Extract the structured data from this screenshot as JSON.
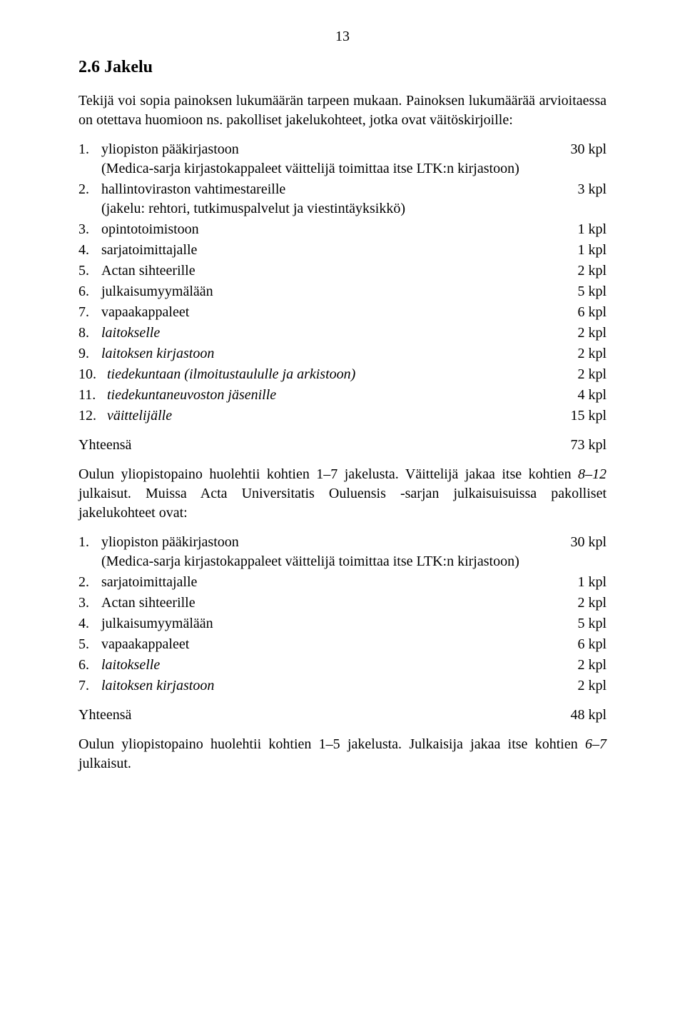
{
  "page_number": "13",
  "section_heading": "2.6 Jakelu",
  "intro_para": "Tekijä voi sopia painoksen lukumäärän tarpeen mukaan. Painoksen lukumäärää arvioitaessa on otettava huomioon ns. pakolliset jakelukohteet, jotka ovat väitöskirjoille:",
  "list1": [
    {
      "num": "1.",
      "label": "yliopiston pääkirjastoon",
      "sub": "(Medica-sarja kirjastokappaleet väittelijä toimittaa itse LTK:n kirjastoon)",
      "val": "30 kpl",
      "italic": false
    },
    {
      "num": "2.",
      "label": "hallintoviraston vahtimestareille",
      "sub": "(jakelu: rehtori, tutkimuspalvelut ja viestintäyksikkö)",
      "val": "3 kpl",
      "italic": false
    },
    {
      "num": "3.",
      "label": " opintotoimistoon",
      "val": "1 kpl",
      "italic": false
    },
    {
      "num": "4.",
      "label": "sarjatoimittajalle",
      "val": "1 kpl",
      "italic": false
    },
    {
      "num": "5.",
      "label": "Actan sihteerille",
      "val": "2 kpl",
      "italic": false
    },
    {
      "num": "6.",
      "label": "julkaisumyymälään",
      "val": "5 kpl",
      "italic": false
    },
    {
      "num": "7.",
      "label": "vapaakappaleet",
      "val": "6 kpl",
      "italic": false
    },
    {
      "num": "8.",
      "label": "laitokselle",
      "val": "2 kpl",
      "italic": true
    },
    {
      "num": "9.",
      "label": "laitoksen kirjastoon",
      "val": "2 kpl",
      "italic": true
    },
    {
      "num": "10.",
      "label": "tiedekuntaan (ilmoitustaululle ja arkistoon)",
      "val": "2 kpl",
      "italic": true
    },
    {
      "num": "11.",
      "label": "tiedekuntaneuvoston jäsenille",
      "val": "4 kpl",
      "italic": true
    },
    {
      "num": "12.",
      "label": "väittelijälle",
      "val": "15 kpl",
      "italic": true
    }
  ],
  "total1_label": "Yhteensä",
  "total1_val": "73 kpl",
  "mid_para_a": "Oulun yliopistopaino huolehtii kohtien 1–7 jakelusta. Väittelijä jakaa itse kohtien ",
  "mid_para_ital": "8–12",
  "mid_para_b": " julkaisut. Muissa Acta Universitatis Ouluensis -sarjan julkaisuisuissa pakolliset jakelukohteet ovat:",
  "list2": [
    {
      "num": "1.",
      "label": "yliopiston pääkirjastoon",
      "sub": "(Medica-sarja kirjastokappaleet väittelijä toimittaa itse LTK:n kirjastoon)",
      "val": "30 kpl",
      "italic": false
    },
    {
      "num": "2.",
      "label": "sarjatoimittajalle",
      "val": "1 kpl",
      "italic": false
    },
    {
      "num": "3.",
      "label": "Actan sihteerille",
      "val": "2 kpl",
      "italic": false
    },
    {
      "num": "4.",
      "label": "julkaisumyymälään",
      "val": "5 kpl",
      "italic": false
    },
    {
      "num": "5.",
      "label": "vapaakappaleet",
      "val": "6 kpl",
      "italic": false
    },
    {
      "num": "6.",
      "label": "laitokselle",
      "val": "2 kpl",
      "italic": true
    },
    {
      "num": "7.",
      "label": "laitoksen kirjastoon",
      "val": "2 kpl",
      "italic": true
    }
  ],
  "total2_label": "Yhteensä",
  "total2_val": "48 kpl",
  "end_para_a": "Oulun yliopistopaino huolehtii kohtien 1–5 jakelusta. Julkaisija jakaa itse kohtien ",
  "end_para_ital": "6–7",
  "end_para_b": " julkaisut.",
  "colors": {
    "text": "#000000",
    "bg": "#ffffff"
  },
  "font": {
    "family": "Times New Roman",
    "body_size_pt": 15,
    "heading_size_pt": 18
  }
}
